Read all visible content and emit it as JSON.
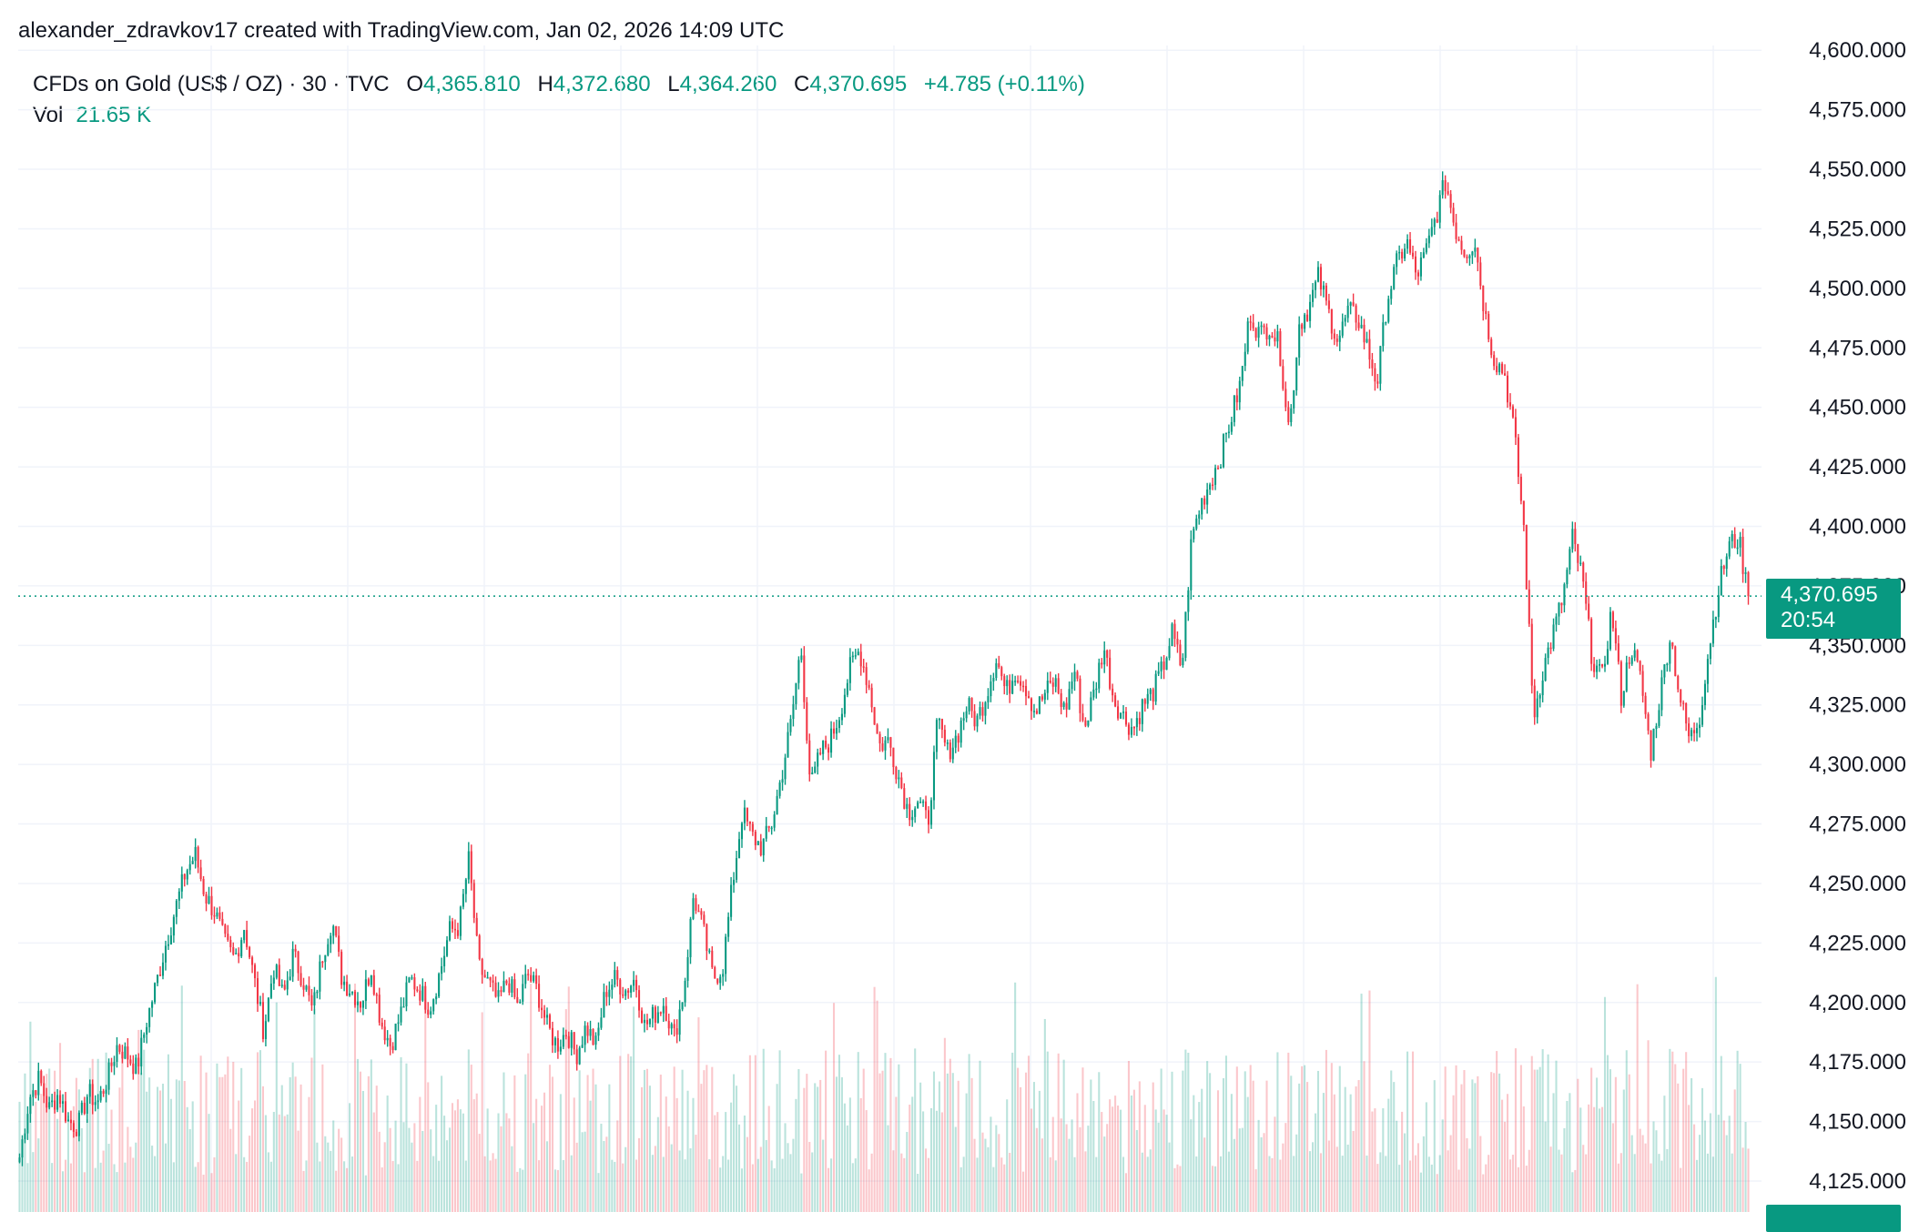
{
  "header": {
    "attribution": "alexander_zdravkov17 created with TradingView.com, Jan 02, 2026 14:09 UTC"
  },
  "legend": {
    "symbol": "CFDs on Gold (US$ / OZ) · 30 · TVC",
    "open_label": "O",
    "open": "4,365.810",
    "high_label": "H",
    "high": "4,372.680",
    "low_label": "L",
    "low": "4,364.260",
    "close_label": "C",
    "close": "4,370.695",
    "change": "+4.785 (+0.11%)",
    "vol_label": "Vol",
    "vol": "21.65 K"
  },
  "last_price": {
    "price": "4,370.695",
    "countdown": "20:54"
  },
  "colors": {
    "up": "#089981",
    "down": "#f23645",
    "grid": "#f0f3fa",
    "text": "#131722"
  },
  "chart_data": {
    "type": "candlestick",
    "title": "CFDs on Gold (US$ / OZ) · 30 · TVC",
    "y_axis": {
      "side": "right",
      "range": [
        4112,
        4602
      ],
      "ticks": [
        "4,125.000",
        "4,150.000",
        "4,175.000",
        "4,200.000",
        "4,225.000",
        "4,250.000",
        "4,275.000",
        "4,300.000",
        "4,325.000",
        "4,350.000",
        "4,375.000",
        "4,400.000",
        "4,425.000",
        "4,450.000",
        "4,475.000",
        "4,500.000",
        "4,525.000",
        "4,550.000",
        "4,575.000",
        "4,600.000"
      ],
      "tick_values": [
        4125,
        4150,
        4175,
        4200,
        4225,
        4250,
        4275,
        4300,
        4325,
        4350,
        4375,
        4400,
        4425,
        4450,
        4475,
        4500,
        4525,
        4550,
        4575,
        4600
      ]
    },
    "grid": true,
    "last_close": 4370.695,
    "close_path": [
      4135,
      4160,
      4168,
      4155,
      4162,
      4150,
      4148,
      4162,
      4158,
      4168,
      4182,
      4178,
      4172,
      4192,
      4208,
      4225,
      4240,
      4255,
      4262,
      4245,
      4238,
      4225,
      4218,
      4232,
      4210,
      4188,
      4215,
      4202,
      4220,
      4210,
      4196,
      4220,
      4235,
      4210,
      4205,
      4200,
      4215,
      4192,
      4182,
      4195,
      4210,
      4205,
      4198,
      4212,
      4230,
      4232,
      4260,
      4215,
      4208,
      4200,
      4210,
      4198,
      4212,
      4205,
      4190,
      4182,
      4188,
      4178,
      4190,
      4182,
      4205,
      4210,
      4205,
      4210,
      4190,
      4195,
      4200,
      4185,
      4205,
      4245,
      4230,
      4210,
      4215,
      4250,
      4280,
      4270,
      4265,
      4275,
      4295,
      4318,
      4350,
      4290,
      4305,
      4310,
      4322,
      4340,
      4348,
      4332,
      4308,
      4310,
      4295,
      4280,
      4285,
      4275,
      4318,
      4305,
      4312,
      4325,
      4318,
      4330,
      4345,
      4330,
      4340,
      4333,
      4322,
      4330,
      4335,
      4322,
      4340,
      4315,
      4330,
      4350,
      4328,
      4320,
      4315,
      4325,
      4330,
      4340,
      4355,
      4340,
      4395,
      4410,
      4420,
      4430,
      4445,
      4460,
      4490,
      4480,
      4485,
      4475,
      4440,
      4485,
      4492,
      4505,
      4490,
      4478,
      4490,
      4488,
      4475,
      4460,
      4495,
      4510,
      4520,
      4505,
      4515,
      4530,
      4545,
      4525,
      4515,
      4520,
      4490,
      4470,
      4465,
      4440,
      4400,
      4320,
      4340,
      4355,
      4370,
      4395,
      4378,
      4345,
      4335,
      4365,
      4328,
      4350,
      4335,
      4305,
      4330,
      4355,
      4328,
      4310,
      4320,
      4350,
      4375,
      4392,
      4395,
      4370.695
    ],
    "volume_range": [
      0,
      220000
    ]
  }
}
